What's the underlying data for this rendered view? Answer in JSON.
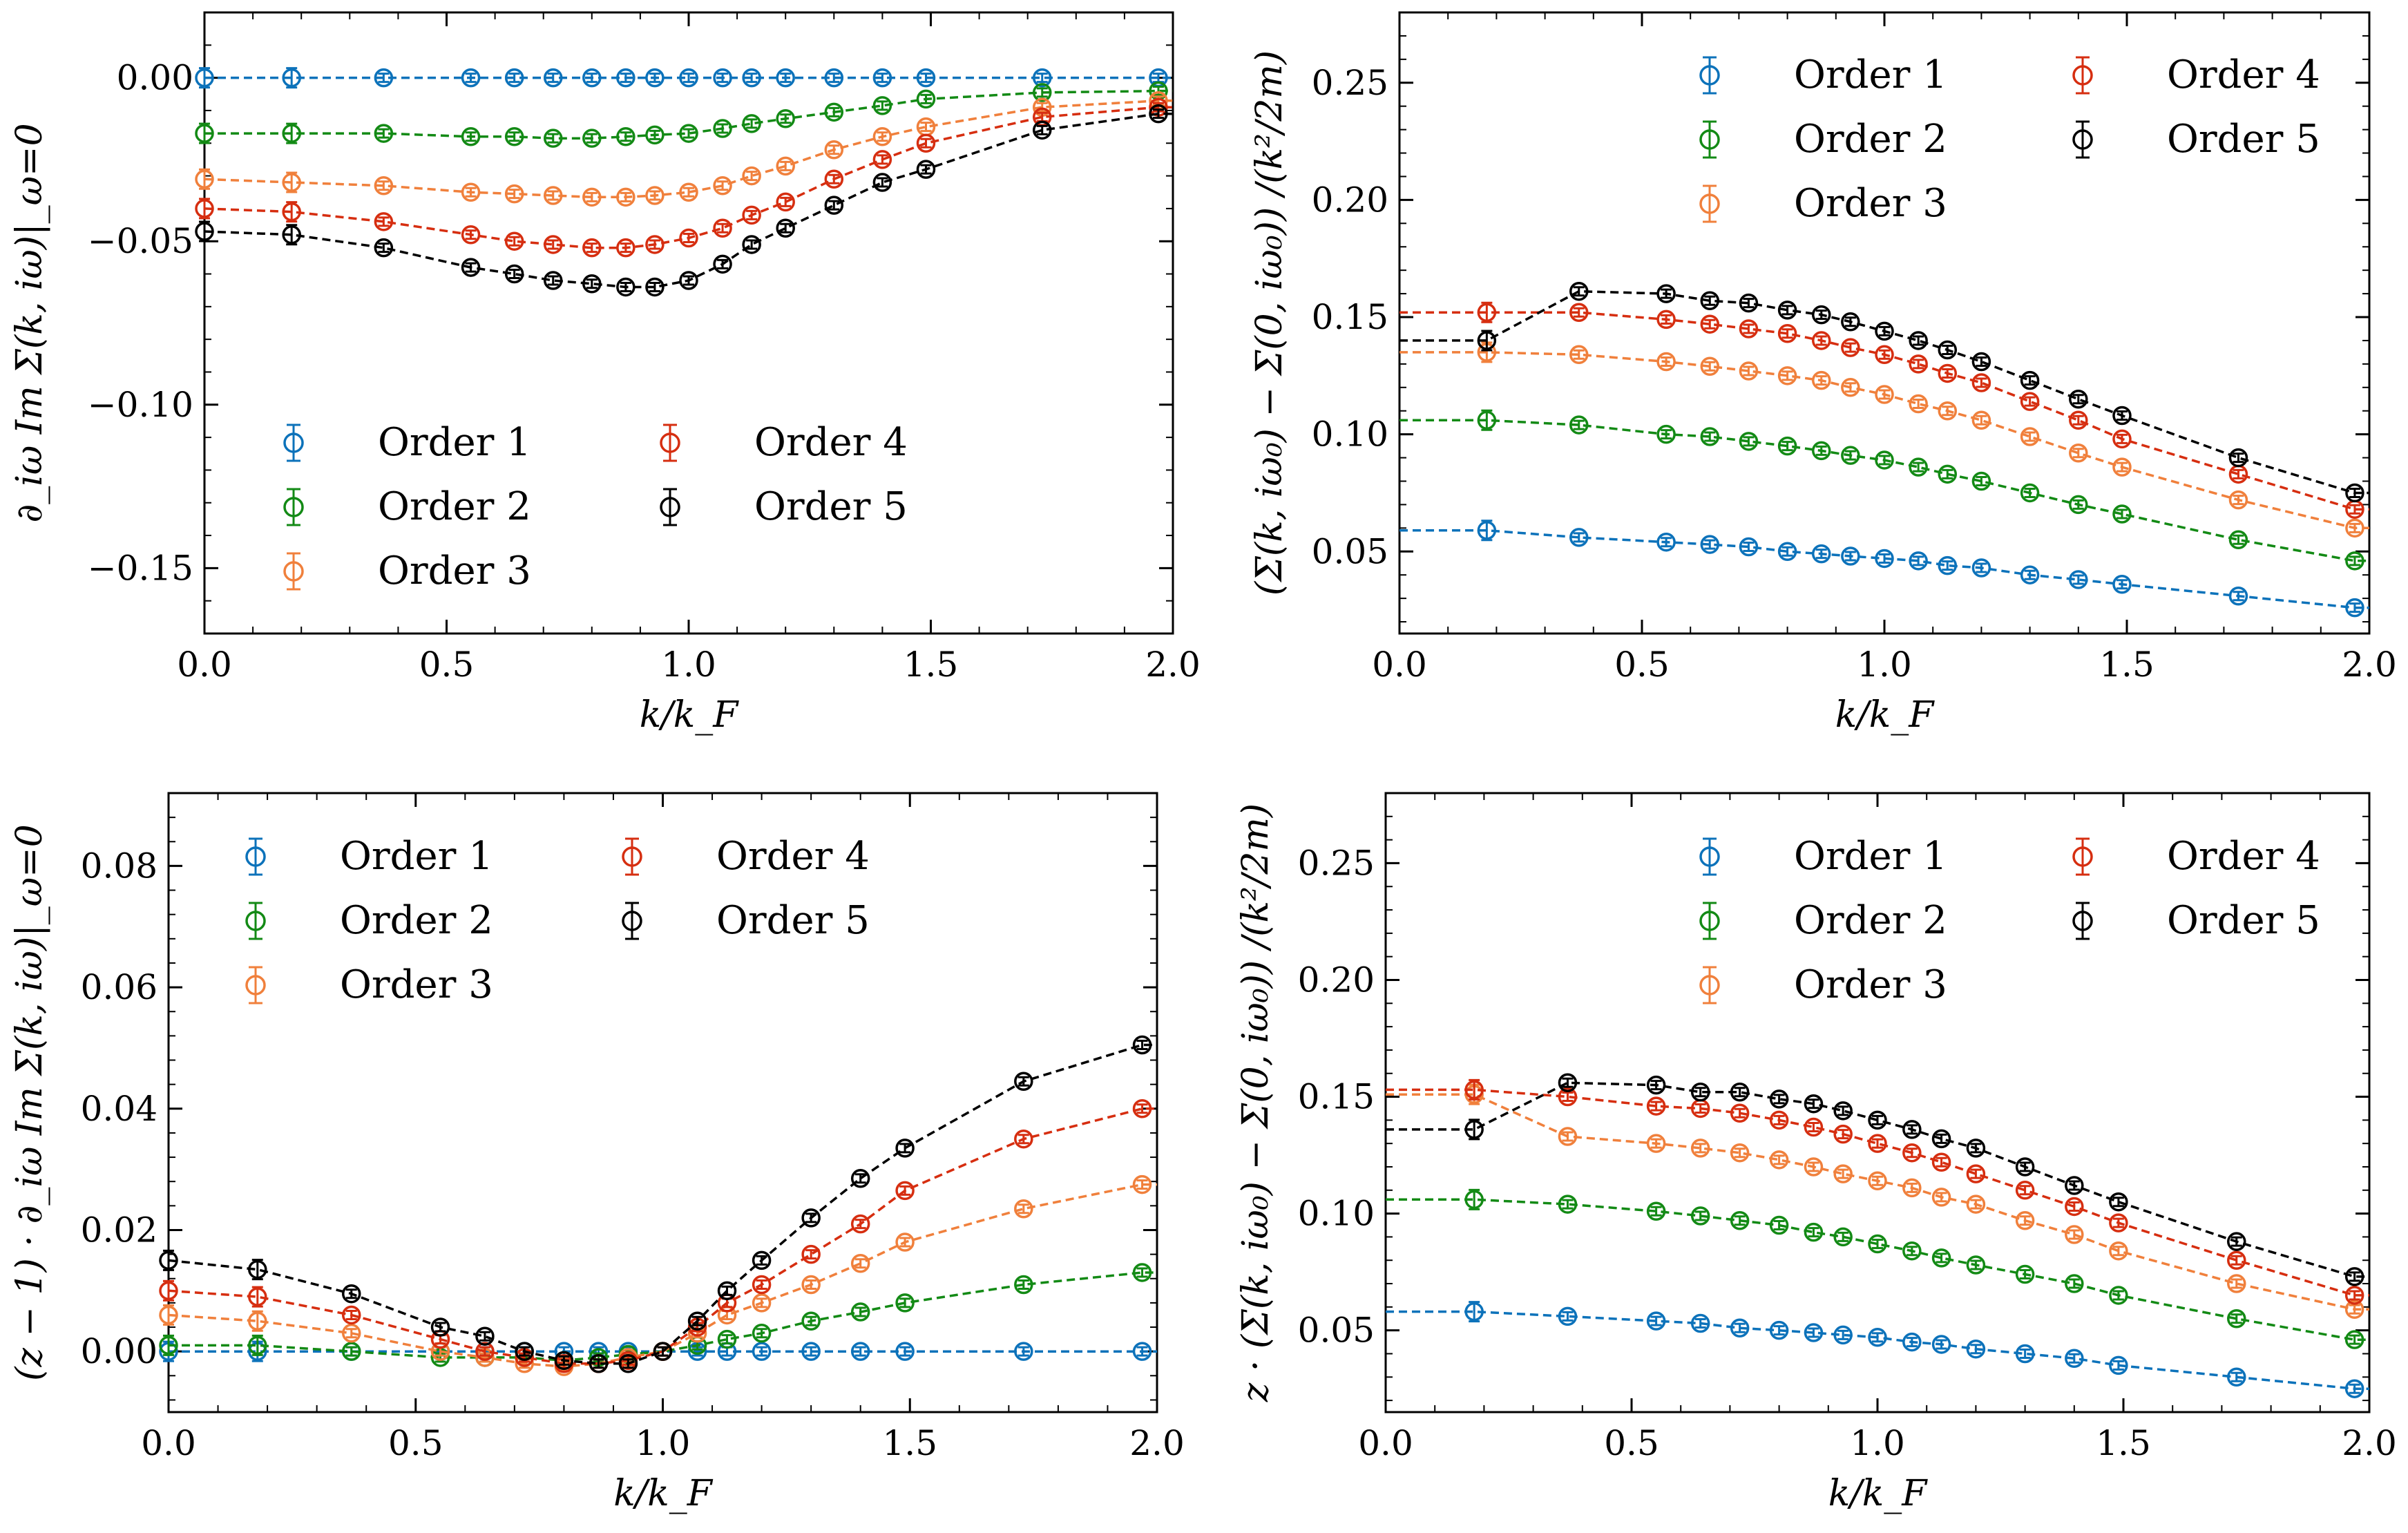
{
  "figure": {
    "legend_entries": [
      "Order 1",
      "Order 2",
      "Order 3",
      "Order 4",
      "Order 5"
    ],
    "series_colors": {
      "Order 1": "#0C72BA",
      "Order 2": "#138A15",
      "Order 3": "#F0803C",
      "Order 4": "#D62E10",
      "Order 5": "#000000"
    }
  },
  "chart_data": [
    {
      "type": "line",
      "xlabel": "k/k_F",
      "ylabel": "∂_iω Im Σ(k, iω)|_ω=0",
      "xlim": [
        0.0,
        2.0
      ],
      "ylim": [
        -0.17,
        0.02
      ],
      "xticks": [
        0.0,
        0.5,
        1.0,
        1.5,
        2.0
      ],
      "xtick_labels": [
        "0.0",
        "0.5",
        "1.0",
        "1.5",
        "2.0"
      ],
      "yticks": [
        0.0,
        -0.05,
        -0.1,
        -0.15
      ],
      "ytick_labels": [
        "0.00",
        "−0.05",
        "−0.10",
        "−0.15"
      ],
      "legend_location": "lower-left",
      "markers": "open circles with error bars, dashed fit lines",
      "series": [
        {
          "name": "Order 1",
          "x": [
            0.0,
            0.18,
            0.37,
            0.55,
            0.64,
            0.72,
            0.8,
            0.87,
            0.93,
            1.0,
            1.07,
            1.13,
            1.2,
            1.3,
            1.4,
            1.49,
            1.73,
            1.97
          ],
          "y": [
            0.0,
            0.0,
            0.0,
            0.0,
            0.0,
            0.0,
            0.0,
            0.0,
            0.0,
            0.0,
            0.0,
            0.0,
            0.0,
            0.0,
            0.0,
            0.0,
            0.0,
            0.0
          ]
        },
        {
          "name": "Order 2",
          "x": [
            0.0,
            0.18,
            0.37,
            0.55,
            0.64,
            0.72,
            0.8,
            0.87,
            0.93,
            1.0,
            1.07,
            1.13,
            1.2,
            1.3,
            1.4,
            1.49,
            1.73,
            1.97
          ],
          "y": [
            -0.017,
            -0.017,
            -0.017,
            -0.018,
            -0.018,
            -0.0185,
            -0.0185,
            -0.018,
            -0.0175,
            -0.017,
            -0.0155,
            -0.014,
            -0.0125,
            -0.0105,
            -0.0085,
            -0.0065,
            -0.0045,
            -0.004
          ]
        },
        {
          "name": "Order 3",
          "x": [
            0.0,
            0.18,
            0.37,
            0.55,
            0.64,
            0.72,
            0.8,
            0.87,
            0.93,
            1.0,
            1.07,
            1.13,
            1.2,
            1.3,
            1.4,
            1.49,
            1.73,
            1.97
          ],
          "y": [
            -0.031,
            -0.032,
            -0.033,
            -0.035,
            -0.0355,
            -0.036,
            -0.0365,
            -0.0365,
            -0.036,
            -0.035,
            -0.033,
            -0.03,
            -0.027,
            -0.022,
            -0.018,
            -0.015,
            -0.009,
            -0.007
          ]
        },
        {
          "name": "Order 4",
          "x": [
            0.0,
            0.18,
            0.37,
            0.55,
            0.64,
            0.72,
            0.8,
            0.87,
            0.93,
            1.0,
            1.07,
            1.13,
            1.2,
            1.3,
            1.4,
            1.49,
            1.73,
            1.97
          ],
          "y": [
            -0.04,
            -0.041,
            -0.044,
            -0.048,
            -0.05,
            -0.051,
            -0.052,
            -0.052,
            -0.051,
            -0.049,
            -0.046,
            -0.042,
            -0.038,
            -0.031,
            -0.025,
            -0.02,
            -0.012,
            -0.009
          ]
        },
        {
          "name": "Order 5",
          "x": [
            0.0,
            0.18,
            0.37,
            0.55,
            0.64,
            0.72,
            0.8,
            0.87,
            0.93,
            1.0,
            1.07,
            1.13,
            1.2,
            1.3,
            1.4,
            1.49,
            1.73,
            1.97
          ],
          "y": [
            -0.047,
            -0.048,
            -0.052,
            -0.058,
            -0.06,
            -0.062,
            -0.063,
            -0.064,
            -0.064,
            -0.062,
            -0.057,
            -0.051,
            -0.046,
            -0.039,
            -0.032,
            -0.028,
            -0.016,
            -0.011
          ]
        }
      ]
    },
    {
      "type": "line",
      "xlabel": "k/k_F",
      "ylabel": "(Σ(k, iω₀) − Σ(0, iω₀)) /(k²/2m)",
      "xlim": [
        0.0,
        2.0
      ],
      "ylim": [
        0.015,
        0.28
      ],
      "xticks": [
        0.0,
        0.5,
        1.0,
        1.5,
        2.0
      ],
      "xtick_labels": [
        "0.0",
        "0.5",
        "1.0",
        "1.5",
        "2.0"
      ],
      "yticks": [
        0.05,
        0.1,
        0.15,
        0.2,
        0.25
      ],
      "ytick_labels": [
        "0.05",
        "0.10",
        "0.15",
        "0.20",
        "0.25"
      ],
      "legend_location": "upper-right",
      "markers": "open circles with error bars, dashed fit lines",
      "series": [
        {
          "name": "Order 1",
          "x": [
            0.18,
            0.37,
            0.55,
            0.64,
            0.72,
            0.8,
            0.87,
            0.93,
            1.0,
            1.07,
            1.13,
            1.2,
            1.3,
            1.4,
            1.49,
            1.73,
            1.97
          ],
          "y": [
            0.059,
            0.056,
            0.054,
            0.053,
            0.052,
            0.05,
            0.049,
            0.048,
            0.047,
            0.046,
            0.044,
            0.043,
            0.04,
            0.038,
            0.036,
            0.031,
            0.026
          ]
        },
        {
          "name": "Order 2",
          "x": [
            0.18,
            0.37,
            0.55,
            0.64,
            0.72,
            0.8,
            0.87,
            0.93,
            1.0,
            1.07,
            1.13,
            1.2,
            1.3,
            1.4,
            1.49,
            1.73,
            1.97
          ],
          "y": [
            0.106,
            0.104,
            0.1,
            0.099,
            0.097,
            0.095,
            0.093,
            0.091,
            0.089,
            0.086,
            0.083,
            0.08,
            0.075,
            0.07,
            0.066,
            0.055,
            0.046
          ]
        },
        {
          "name": "Order 3",
          "x": [
            0.18,
            0.37,
            0.55,
            0.64,
            0.72,
            0.8,
            0.87,
            0.93,
            1.0,
            1.07,
            1.13,
            1.2,
            1.3,
            1.4,
            1.49,
            1.73,
            1.97
          ],
          "y": [
            0.135,
            0.134,
            0.131,
            0.129,
            0.127,
            0.125,
            0.123,
            0.12,
            0.117,
            0.113,
            0.11,
            0.106,
            0.099,
            0.092,
            0.086,
            0.072,
            0.06
          ]
        },
        {
          "name": "Order 4",
          "x": [
            0.18,
            0.37,
            0.55,
            0.64,
            0.72,
            0.8,
            0.87,
            0.93,
            1.0,
            1.07,
            1.13,
            1.2,
            1.3,
            1.4,
            1.49,
            1.73,
            1.97
          ],
          "y": [
            0.152,
            0.152,
            0.149,
            0.147,
            0.145,
            0.143,
            0.14,
            0.137,
            0.134,
            0.13,
            0.126,
            0.122,
            0.114,
            0.106,
            0.098,
            0.083,
            0.068
          ]
        },
        {
          "name": "Order 5",
          "x": [
            0.18,
            0.37,
            0.55,
            0.64,
            0.72,
            0.8,
            0.87,
            0.93,
            1.0,
            1.07,
            1.13,
            1.2,
            1.3,
            1.4,
            1.49,
            1.73,
            1.97
          ],
          "y": [
            0.14,
            0.161,
            0.16,
            0.157,
            0.156,
            0.153,
            0.151,
            0.148,
            0.144,
            0.14,
            0.136,
            0.131,
            0.123,
            0.115,
            0.108,
            0.09,
            0.075
          ]
        }
      ]
    },
    {
      "type": "line",
      "xlabel": "k/k_F",
      "ylabel": "(z − 1) · ∂_iω Im Σ(k, iω)|_ω=0",
      "xlim": [
        0.0,
        2.0
      ],
      "ylim": [
        -0.01,
        0.092
      ],
      "xticks": [
        0.0,
        0.5,
        1.0,
        1.5,
        2.0
      ],
      "xtick_labels": [
        "0.0",
        "0.5",
        "1.0",
        "1.5",
        "2.0"
      ],
      "yticks": [
        0.0,
        0.02,
        0.04,
        0.06,
        0.08
      ],
      "ytick_labels": [
        "0.00",
        "0.02",
        "0.04",
        "0.06",
        "0.08"
      ],
      "legend_location": "upper-left",
      "markers": "open circles with error bars, dashed fit lines",
      "series": [
        {
          "name": "Order 1",
          "x": [
            0.0,
            0.18,
            0.37,
            0.55,
            0.64,
            0.72,
            0.8,
            0.87,
            0.93,
            1.0,
            1.07,
            1.13,
            1.2,
            1.3,
            1.4,
            1.49,
            1.73,
            1.97
          ],
          "y": [
            0.0,
            0.0,
            0.0,
            0.0,
            0.0,
            0.0,
            0.0,
            0.0,
            0.0,
            0.0,
            0.0,
            0.0,
            0.0,
            0.0,
            0.0,
            0.0,
            0.0,
            0.0
          ]
        },
        {
          "name": "Order 2",
          "x": [
            0.0,
            0.18,
            0.37,
            0.55,
            0.64,
            0.72,
            0.8,
            0.87,
            0.93,
            1.0,
            1.07,
            1.13,
            1.2,
            1.3,
            1.4,
            1.49,
            1.73,
            1.97
          ],
          "y": [
            0.001,
            0.001,
            0.0,
            -0.001,
            -0.001,
            -0.001,
            -0.0015,
            -0.001,
            -0.0005,
            0.0,
            0.001,
            0.002,
            0.003,
            0.005,
            0.0065,
            0.008,
            0.011,
            0.013
          ]
        },
        {
          "name": "Order 3",
          "x": [
            0.0,
            0.18,
            0.37,
            0.55,
            0.64,
            0.72,
            0.8,
            0.87,
            0.93,
            1.0,
            1.07,
            1.13,
            1.2,
            1.3,
            1.4,
            1.49,
            1.73,
            1.97
          ],
          "y": [
            0.006,
            0.005,
            0.003,
            0.0,
            -0.001,
            -0.002,
            -0.0025,
            -0.002,
            -0.001,
            0.0,
            0.003,
            0.006,
            0.008,
            0.011,
            0.0145,
            0.018,
            0.0235,
            0.0275
          ]
        },
        {
          "name": "Order 4",
          "x": [
            0.0,
            0.18,
            0.37,
            0.55,
            0.64,
            0.72,
            0.8,
            0.87,
            0.93,
            1.0,
            1.07,
            1.13,
            1.2,
            1.3,
            1.4,
            1.49,
            1.73,
            1.97
          ],
          "y": [
            0.01,
            0.009,
            0.006,
            0.002,
            0.0,
            -0.001,
            -0.002,
            -0.002,
            -0.0015,
            0.0,
            0.004,
            0.008,
            0.011,
            0.016,
            0.021,
            0.0265,
            0.035,
            0.04
          ]
        },
        {
          "name": "Order 5",
          "x": [
            0.0,
            0.18,
            0.37,
            0.55,
            0.64,
            0.72,
            0.8,
            0.87,
            0.93,
            1.0,
            1.07,
            1.13,
            1.2,
            1.3,
            1.4,
            1.49,
            1.73,
            1.97
          ],
          "y": [
            0.015,
            0.0135,
            0.0095,
            0.004,
            0.0025,
            0.0,
            -0.0015,
            -0.002,
            -0.002,
            0.0,
            0.005,
            0.01,
            0.015,
            0.022,
            0.0285,
            0.0335,
            0.0445,
            0.0505
          ]
        }
      ]
    },
    {
      "type": "line",
      "xlabel": "k/k_F",
      "ylabel": "z · (Σ(k, iω₀) − Σ(0, iω₀)) /(k²/2m)",
      "xlim": [
        0.0,
        2.0
      ],
      "ylim": [
        0.015,
        0.28
      ],
      "xticks": [
        0.0,
        0.5,
        1.0,
        1.5,
        2.0
      ],
      "xtick_labels": [
        "0.0",
        "0.5",
        "1.0",
        "1.5",
        "2.0"
      ],
      "yticks": [
        0.05,
        0.1,
        0.15,
        0.2,
        0.25
      ],
      "ytick_labels": [
        "0.05",
        "0.10",
        "0.15",
        "0.20",
        "0.25"
      ],
      "legend_location": "upper-right",
      "markers": "open circles with error bars, dashed fit lines",
      "series": [
        {
          "name": "Order 1",
          "x": [
            0.18,
            0.37,
            0.55,
            0.64,
            0.72,
            0.8,
            0.87,
            0.93,
            1.0,
            1.07,
            1.13,
            1.2,
            1.3,
            1.4,
            1.49,
            1.73,
            1.97
          ],
          "y": [
            0.058,
            0.056,
            0.054,
            0.053,
            0.051,
            0.05,
            0.049,
            0.048,
            0.047,
            0.045,
            0.044,
            0.042,
            0.04,
            0.038,
            0.035,
            0.03,
            0.025
          ]
        },
        {
          "name": "Order 2",
          "x": [
            0.18,
            0.37,
            0.55,
            0.64,
            0.72,
            0.8,
            0.87,
            0.93,
            1.0,
            1.07,
            1.13,
            1.2,
            1.3,
            1.4,
            1.49,
            1.73,
            1.97
          ],
          "y": [
            0.106,
            0.104,
            0.101,
            0.099,
            0.097,
            0.095,
            0.092,
            0.09,
            0.087,
            0.084,
            0.081,
            0.078,
            0.074,
            0.07,
            0.065,
            0.055,
            0.046
          ]
        },
        {
          "name": "Order 3",
          "x": [
            0.18,
            0.37,
            0.55,
            0.64,
            0.72,
            0.8,
            0.87,
            0.93,
            1.0,
            1.07,
            1.13,
            1.2,
            1.3,
            1.4,
            1.49,
            1.73,
            1.97
          ],
          "y": [
            0.151,
            0.133,
            0.13,
            0.128,
            0.126,
            0.123,
            0.12,
            0.117,
            0.114,
            0.111,
            0.107,
            0.104,
            0.097,
            0.091,
            0.084,
            0.07,
            0.059
          ]
        },
        {
          "name": "Order 4",
          "x": [
            0.18,
            0.37,
            0.55,
            0.64,
            0.72,
            0.8,
            0.87,
            0.93,
            1.0,
            1.07,
            1.13,
            1.2,
            1.3,
            1.4,
            1.49,
            1.73,
            1.97
          ],
          "y": [
            0.153,
            0.15,
            0.146,
            0.145,
            0.143,
            0.14,
            0.137,
            0.134,
            0.13,
            0.126,
            0.122,
            0.117,
            0.11,
            0.103,
            0.096,
            0.08,
            0.065
          ]
        },
        {
          "name": "Order 5",
          "x": [
            0.18,
            0.37,
            0.55,
            0.64,
            0.72,
            0.8,
            0.87,
            0.93,
            1.0,
            1.07,
            1.13,
            1.2,
            1.3,
            1.4,
            1.49,
            1.73,
            1.97
          ],
          "y": [
            0.136,
            0.156,
            0.155,
            0.152,
            0.152,
            0.149,
            0.147,
            0.144,
            0.14,
            0.136,
            0.132,
            0.128,
            0.12,
            0.112,
            0.105,
            0.088,
            0.073
          ]
        }
      ]
    }
  ]
}
